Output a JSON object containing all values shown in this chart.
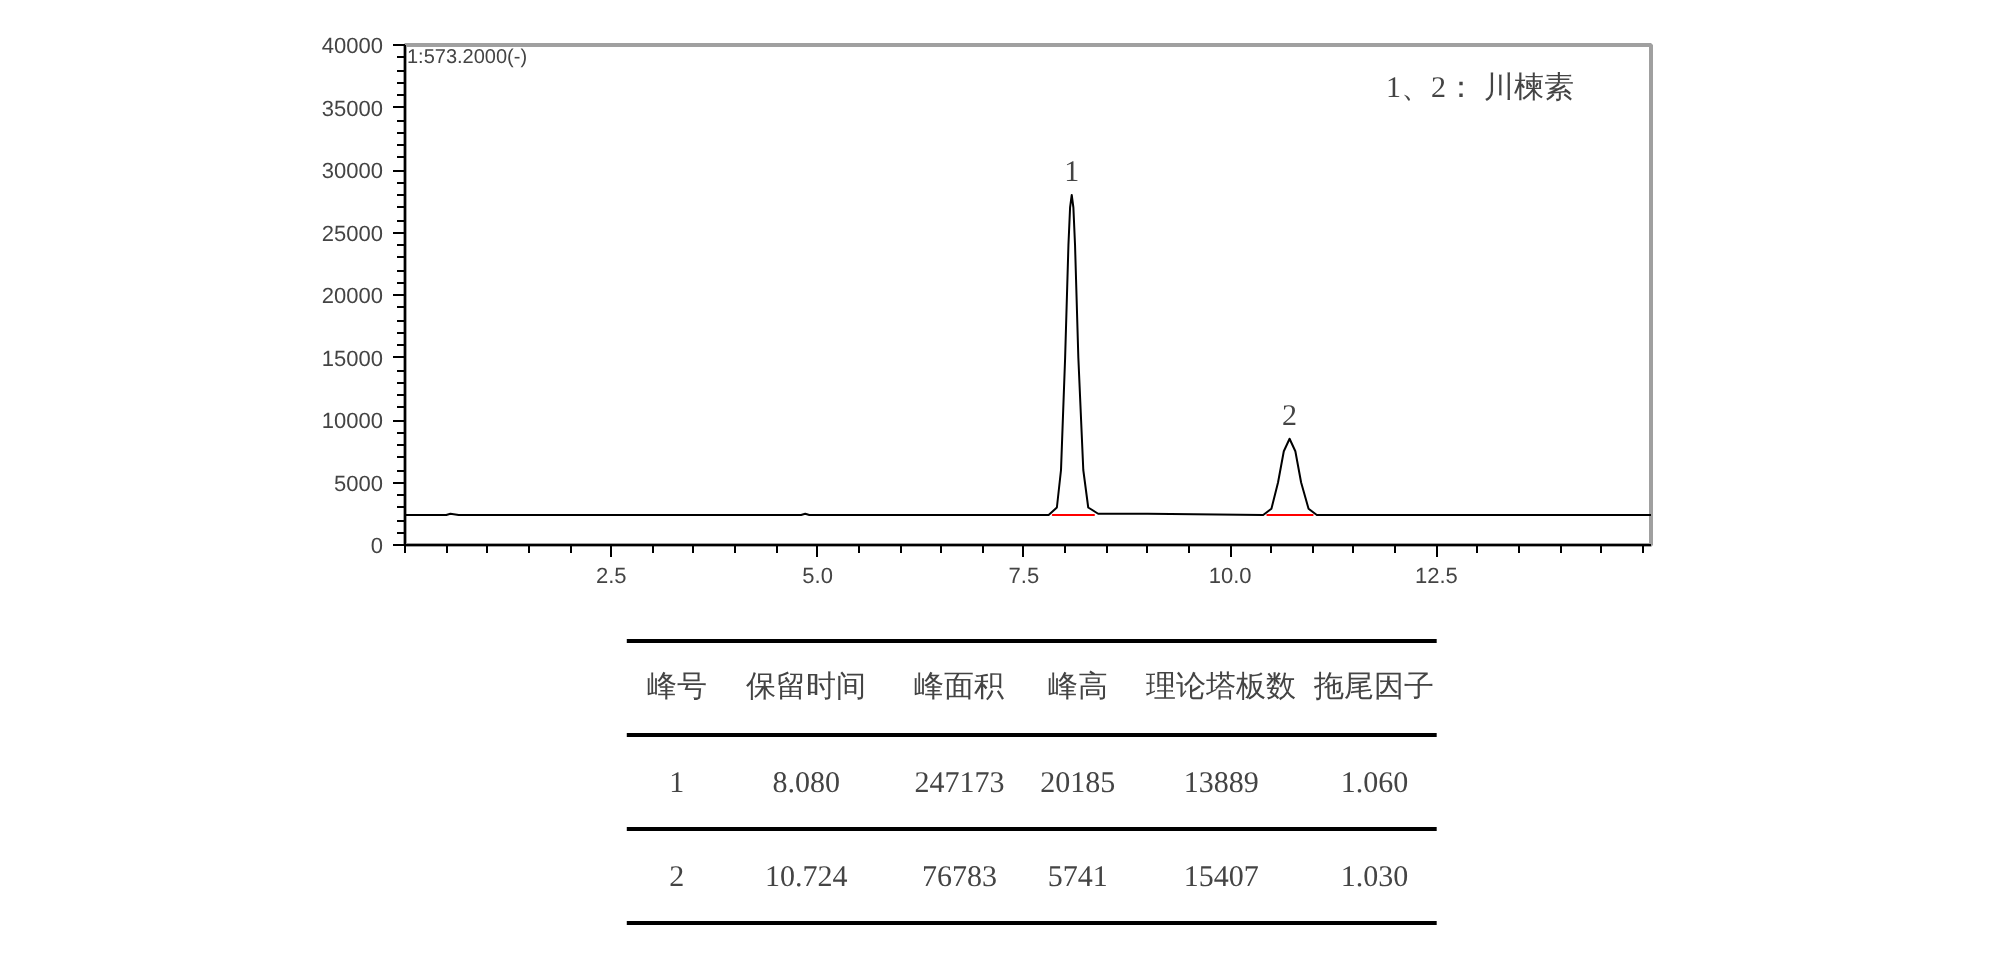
{
  "chart_data": {
    "type": "line",
    "xlim": [
      0,
      15.1
    ],
    "xticks": [
      {
        "value": 2.5,
        "label": "2.5"
      },
      {
        "value": 5.0,
        "label": "5.0"
      },
      {
        "value": 7.5,
        "label": "7.5"
      },
      {
        "value": 10.0,
        "label": "10.0"
      },
      {
        "value": 12.5,
        "label": "12.5"
      }
    ],
    "ylim": [
      0,
      40000
    ],
    "yticks": [
      0,
      5000,
      10000,
      15000,
      20000,
      25000,
      30000,
      35000,
      40000
    ],
    "grid": false,
    "series": [
      {
        "color": "#000000",
        "x": [
          0,
          0.5,
          0.55,
          0.65,
          4.8,
          4.85,
          4.9,
          7.8,
          7.9,
          7.95,
          8.0,
          8.04,
          8.06,
          8.08,
          8.1,
          8.12,
          8.16,
          8.22,
          8.28,
          8.4,
          9.0,
          10.4,
          10.5,
          10.58,
          10.65,
          10.72,
          10.79,
          10.86,
          10.95,
          11.05,
          15.1
        ],
        "values": [
          2400,
          2400,
          2500,
          2400,
          2400,
          2500,
          2400,
          2400,
          3000,
          6000,
          15000,
          24000,
          27000,
          28000,
          27000,
          24000,
          15000,
          6000,
          3000,
          2500,
          2500,
          2400,
          2900,
          5000,
          7500,
          8500,
          7500,
          5000,
          2900,
          2400,
          2400
        ]
      },
      {
        "color": "#ff0000",
        "x": [
          7.85,
          8.35
        ],
        "values": [
          2400,
          2400
        ]
      },
      {
        "color": "#ff0000",
        "x": [
          10.45,
          11.0
        ],
        "values": [
          2400,
          2400
        ]
      }
    ],
    "annotations": [
      "1:573.2000(-)",
      "1、2：  川楝素",
      {
        "text": "1",
        "x": 8.08,
        "y": 28000
      },
      {
        "text": "2",
        "x": 10.72,
        "y": 8500
      },
      "峰号",
      "保留时间",
      "峰面积",
      "峰高",
      "理论塔板数",
      "拖尾因子",
      "1",
      "8.080",
      "247173",
      "20185",
      "13889",
      "1.060",
      "2",
      "10.724",
      "76783",
      "5741",
      "15407",
      "1.030"
    ]
  }
}
